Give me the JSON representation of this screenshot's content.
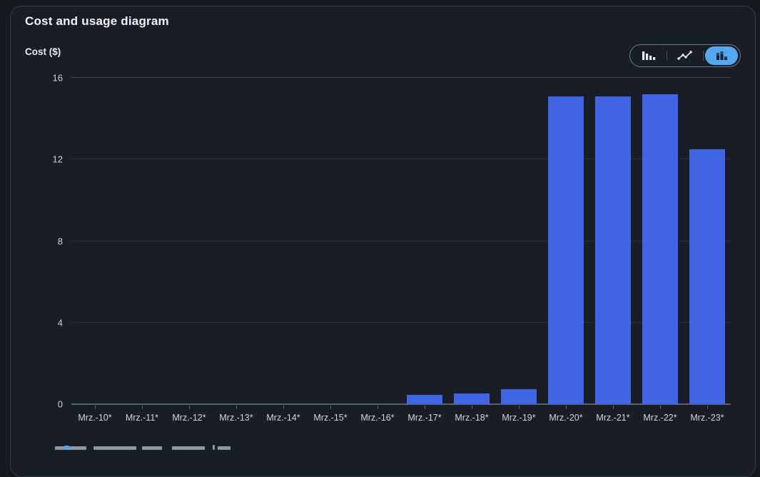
{
  "card": {
    "title": "Cost and usage diagram"
  },
  "toolbar": {
    "chart_type_toggle": [
      {
        "label": "bar-chart",
        "selected": false
      },
      {
        "label": "line-chart",
        "selected": false
      },
      {
        "label": "stacked-bar-chart",
        "selected": true
      }
    ]
  },
  "chart_data": {
    "type": "bar",
    "title": "Cost and usage diagram",
    "xlabel": "",
    "ylabel": "Cost ($)",
    "categories": [
      "Mrz.-10*",
      "Mrz.-11*",
      "Mrz.-12*",
      "Mrz.-13*",
      "Mrz.-14*",
      "Mrz.-15*",
      "Mrz.-16*",
      "Mrz.-17*",
      "Mrz.-18*",
      "Mrz.-19*",
      "Mrz.-20*",
      "Mrz.-21*",
      "Mrz.-22*",
      "Mrz.-23*"
    ],
    "values": [
      0,
      0,
      0,
      0,
      0,
      0,
      0,
      0.46,
      0.52,
      0.73,
      15.1,
      15.1,
      15.2,
      12.5
    ],
    "ylim": [
      0,
      16
    ],
    "yticks": [
      16,
      12,
      8,
      4,
      0
    ],
    "grid": true,
    "legend_position": "none",
    "bar_color": "#4164e4"
  },
  "colors": {
    "background": "#15181d",
    "card_background": "#181d26",
    "bar": "#4164e4",
    "selected_toggle": "#54a8f0",
    "axis_line": "#5a6372",
    "gridline": "#272e39",
    "text": "#e8ebef"
  }
}
